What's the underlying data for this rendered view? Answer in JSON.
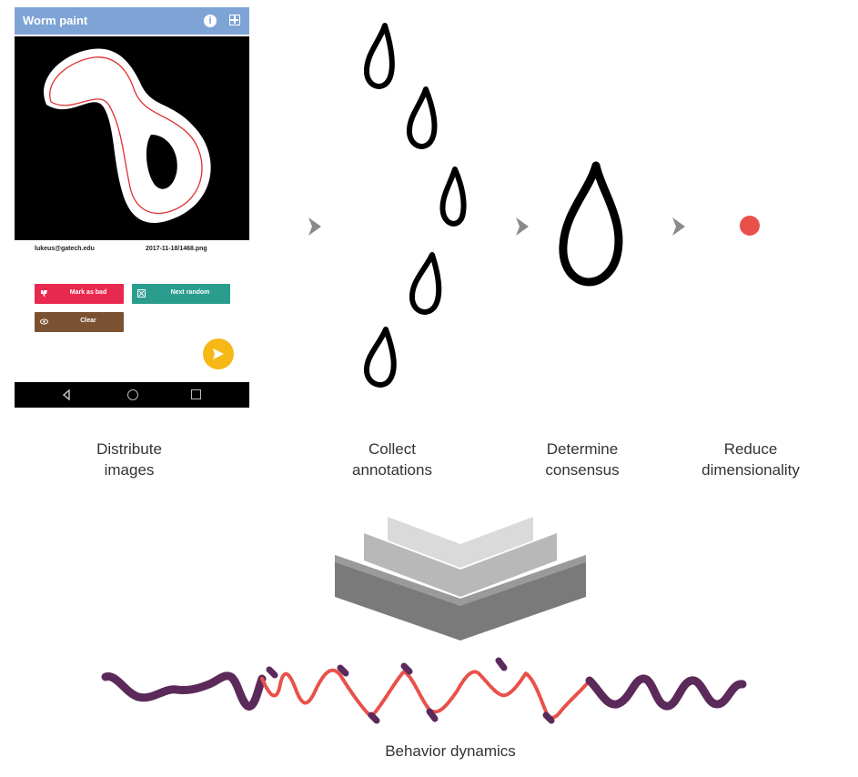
{
  "phone_app": {
    "title": "Worm paint",
    "user_email": "lukeus@gatech.edu",
    "image_filename": "2017-11-18/1468.png",
    "buttons": {
      "mark_bad": "Mark as bad",
      "next_random": "Next random",
      "clear": "Clear"
    },
    "icons": {
      "info": "info-icon",
      "grid": "grid-icon",
      "thumbs_down": "thumbs-down-icon",
      "shuffle": "shuffle-icon",
      "eye": "eye-icon",
      "send": "send-icon",
      "back": "back-icon",
      "home": "home-icon",
      "recent": "recent-apps-icon"
    },
    "colors": {
      "appbar": "#7ea4d6",
      "mark_bad": "#e8294f",
      "next_random": "#2a9d8f",
      "clear": "#7a5232",
      "fab": "#f6b817"
    }
  },
  "pipeline": {
    "stages": [
      {
        "line1": "Distribute",
        "line2": "images"
      },
      {
        "line1": "Collect",
        "line2": "annotations"
      },
      {
        "line1": "Determine",
        "line2": "consensus"
      },
      {
        "line1": "Reduce",
        "line2": "dimensionality"
      }
    ],
    "output_label": "Behavior dynamics",
    "colors": {
      "arrow": "#8a8a8a",
      "point": "#e8514a",
      "trace_calm": "#5b2a5a",
      "trace_active": "#e8514a"
    }
  }
}
